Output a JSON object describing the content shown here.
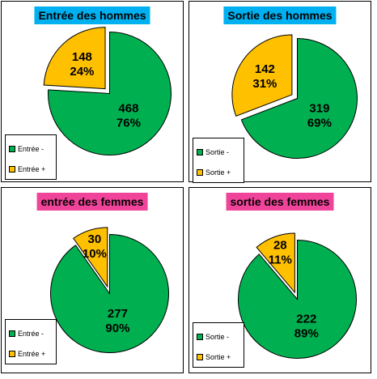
{
  "colors": {
    "green": "#00b050",
    "orange": "#ffc000",
    "blue": "#00b0f0",
    "pink": "#f0449a"
  },
  "chart_data": [
    {
      "type": "pie",
      "title": "Entrée des hommes",
      "title_color": "#00b0f0",
      "slices": [
        {
          "label": "Entrée -",
          "value": 468,
          "percent": "76%",
          "color": "#00b050"
        },
        {
          "label": "Entrée +",
          "value": 148,
          "percent": "24%",
          "color": "#ffc000",
          "exploded": true
        }
      ],
      "legend": [
        "Entrée -",
        "Entrée +"
      ],
      "legend_position": "bottom-left"
    },
    {
      "type": "pie",
      "title": "Sortie des hommes",
      "title_color": "#00b0f0",
      "slices": [
        {
          "label": "Sortie -",
          "value": 319,
          "percent": "69%",
          "color": "#00b050"
        },
        {
          "label": "Sortie +",
          "value": 142,
          "percent": "31%",
          "color": "#ffc000",
          "exploded": true
        }
      ],
      "legend": [
        "Sortie -",
        "Sortie +"
      ],
      "legend_position": "bottom-left"
    },
    {
      "type": "pie",
      "title": "entrée des femmes",
      "title_color": "#f0449a",
      "slices": [
        {
          "label": "Entrée -",
          "value": 277,
          "percent": "90%",
          "color": "#00b050"
        },
        {
          "label": "Entrée +",
          "value": 30,
          "percent": "10%",
          "color": "#ffc000",
          "exploded": true
        }
      ],
      "legend": [
        "Entrée -",
        "Entrée +"
      ],
      "legend_position": "bottom-left"
    },
    {
      "type": "pie",
      "title": "sortie des femmes",
      "title_color": "#f0449a",
      "slices": [
        {
          "label": "Sortie -",
          "value": 222,
          "percent": "89%",
          "color": "#00b050"
        },
        {
          "label": "Sortie +",
          "value": 28,
          "percent": "11%",
          "color": "#ffc000",
          "exploded": true
        }
      ],
      "legend": [
        "Sortie -",
        "Sortie +"
      ],
      "legend_position": "bottom-left"
    }
  ]
}
